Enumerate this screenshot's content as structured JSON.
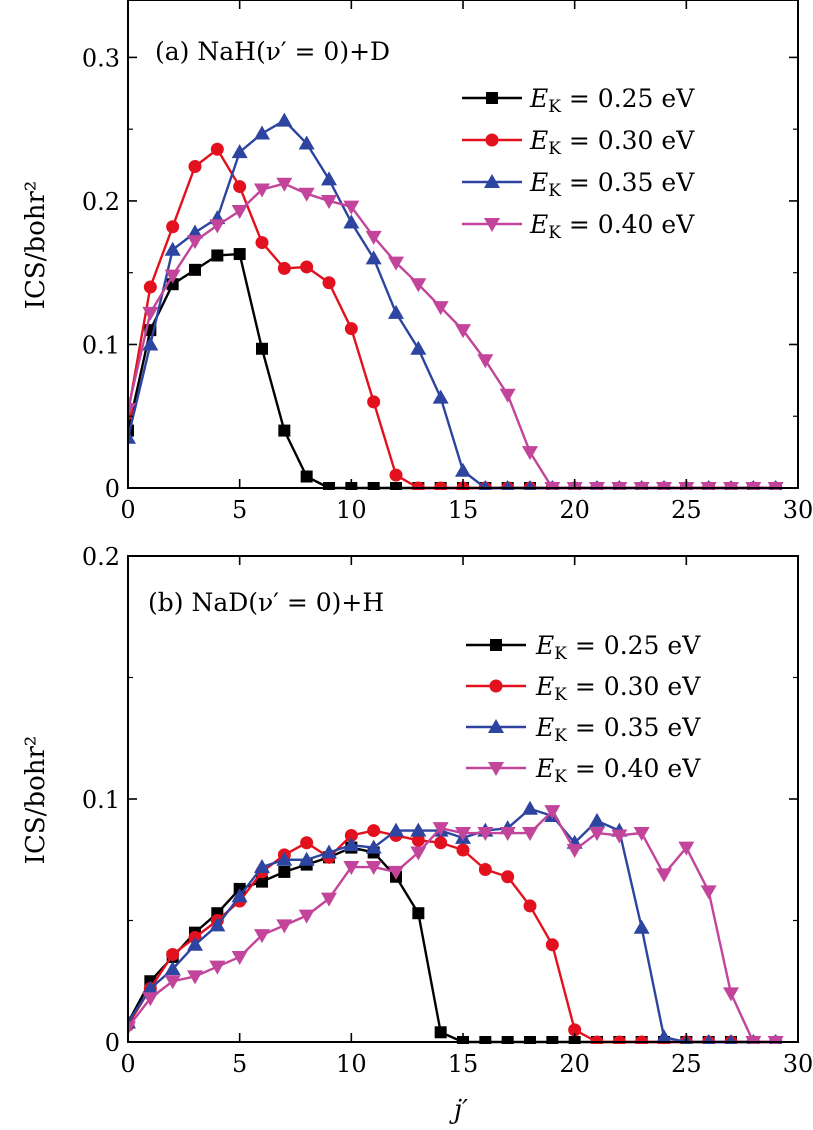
{
  "chart_data": [
    {
      "type": "line",
      "panel": "a",
      "title": "(a) NaH(ν′ = 0)+D",
      "xlabel": "",
      "ylabel": "ICS/bohr²",
      "xlim": [
        0,
        30
      ],
      "ylim": [
        0,
        0.34
      ],
      "xticks": [
        0,
        5,
        10,
        15,
        20,
        25,
        30
      ],
      "xtick_labels": [
        "0",
        "5",
        "10",
        "15",
        "20",
        "25",
        "30"
      ],
      "yticks": [
        0,
        0.1,
        0.2,
        0.3
      ],
      "ytick_labels": [
        "0",
        "0.1",
        "0.2",
        "0.3"
      ],
      "legend_position": "top-right",
      "series": [
        {
          "name": "E_K = 0.25 eV",
          "label_main": "E",
          "label_sub": "K",
          "label_rest": " = 0.25 eV",
          "color": "#000000",
          "marker": "square",
          "x": [
            0,
            1,
            2,
            3,
            4,
            5,
            6,
            7,
            8,
            9,
            10,
            11,
            12,
            13,
            14,
            15,
            16,
            17,
            18,
            19,
            20,
            21,
            22,
            23,
            24,
            25,
            26,
            27,
            28,
            29
          ],
          "values": [
            0.04,
            0.11,
            0.142,
            0.152,
            0.162,
            0.163,
            0.097,
            0.04,
            0.008,
            0,
            0,
            0,
            0,
            0,
            0,
            0,
            0,
            0,
            0,
            0,
            0,
            0,
            0,
            0,
            0,
            0,
            0,
            0,
            0,
            0
          ]
        },
        {
          "name": "E_K = 0.30 eV",
          "label_main": "E",
          "label_sub": "K",
          "label_rest": " = 0.30 eV",
          "color": "#e3101e",
          "marker": "circle",
          "x": [
            0,
            1,
            2,
            3,
            4,
            5,
            6,
            7,
            8,
            9,
            10,
            11,
            12,
            13,
            14,
            15,
            16,
            17,
            18,
            19,
            20,
            21,
            22,
            23,
            24,
            25,
            26,
            27,
            28,
            29
          ],
          "values": [
            0.052,
            0.14,
            0.182,
            0.224,
            0.236,
            0.21,
            0.171,
            0.153,
            0.154,
            0.143,
            0.111,
            0.06,
            0.009,
            0,
            0,
            0,
            0,
            0,
            0,
            0,
            0,
            0,
            0,
            0,
            0,
            0,
            0,
            0,
            0,
            0
          ]
        },
        {
          "name": "E_K = 0.35 eV",
          "label_main": "E",
          "label_sub": "K",
          "label_rest": " = 0.35 eV",
          "color": "#2d44a0",
          "marker": "triangle-up",
          "x": [
            0,
            1,
            2,
            3,
            4,
            5,
            6,
            7,
            8,
            9,
            10,
            11,
            12,
            13,
            14,
            15,
            16,
            17,
            18,
            19,
            20,
            21,
            22,
            23,
            24,
            25,
            26,
            27,
            28,
            29
          ],
          "values": [
            0.035,
            0.1,
            0.166,
            0.178,
            0.188,
            0.234,
            0.247,
            0.256,
            0.24,
            0.215,
            0.185,
            0.16,
            0.122,
            0.097,
            0.063,
            0.012,
            0,
            0,
            0,
            0,
            0,
            0,
            0,
            0,
            0,
            0,
            0,
            0,
            0,
            0
          ]
        },
        {
          "name": "E_K = 0.40 eV",
          "label_main": "E",
          "label_sub": "K",
          "label_rest": " = 0.40 eV",
          "color": "#c2449b",
          "marker": "triangle-down",
          "x": [
            0,
            1,
            2,
            3,
            4,
            5,
            6,
            7,
            8,
            9,
            10,
            11,
            12,
            13,
            14,
            15,
            16,
            17,
            18,
            19,
            20,
            21,
            22,
            23,
            24,
            25,
            26,
            27,
            28,
            29
          ],
          "values": [
            0.055,
            0.122,
            0.148,
            0.172,
            0.183,
            0.193,
            0.208,
            0.212,
            0.205,
            0.2,
            0.196,
            0.175,
            0.157,
            0.142,
            0.126,
            0.11,
            0.089,
            0.065,
            0.025,
            0,
            0,
            0,
            0,
            0,
            0,
            0,
            0,
            0,
            0,
            0
          ]
        }
      ]
    },
    {
      "type": "line",
      "panel": "b",
      "title": "(b) NaD(ν′ = 0)+H",
      "xlabel": "j′",
      "ylabel": "ICS/bohr²",
      "xlim": [
        0,
        30
      ],
      "ylim": [
        0,
        0.2
      ],
      "xticks": [
        0,
        5,
        10,
        15,
        20,
        25,
        30
      ],
      "xtick_labels": [
        "0",
        "5",
        "10",
        "15",
        "20",
        "25",
        "30"
      ],
      "yticks": [
        0,
        0.1,
        0.2
      ],
      "ytick_labels": [
        "0",
        "0.1",
        "0.2"
      ],
      "legend_position": "top-right",
      "series": [
        {
          "name": "E_K = 0.25 eV",
          "label_main": "E",
          "label_sub": "K",
          "label_rest": " = 0.25 eV",
          "color": "#000000",
          "marker": "square",
          "x": [
            0,
            1,
            2,
            3,
            4,
            5,
            6,
            7,
            8,
            9,
            10,
            11,
            12,
            13,
            14,
            15,
            16,
            17,
            18,
            19,
            20,
            21,
            22,
            23,
            24,
            25,
            26,
            27,
            28,
            29
          ],
          "values": [
            0.008,
            0.025,
            0.035,
            0.045,
            0.053,
            0.063,
            0.066,
            0.07,
            0.073,
            0.076,
            0.08,
            0.078,
            0.068,
            0.053,
            0.004,
            0,
            0,
            0,
            0,
            0,
            0,
            0,
            0,
            0,
            0,
            0,
            0,
            0,
            0,
            0
          ]
        },
        {
          "name": "E_K = 0.30 eV",
          "label_main": "E",
          "label_sub": "K",
          "label_rest": " = 0.30 eV",
          "color": "#e3101e",
          "marker": "circle",
          "x": [
            0,
            1,
            2,
            3,
            4,
            5,
            6,
            7,
            8,
            9,
            10,
            11,
            12,
            13,
            14,
            15,
            16,
            17,
            18,
            19,
            20,
            21,
            22,
            23,
            24,
            25,
            26,
            27,
            28,
            29
          ],
          "values": [
            0.007,
            0.022,
            0.036,
            0.043,
            0.05,
            0.058,
            0.07,
            0.077,
            0.082,
            0.076,
            0.085,
            0.087,
            0.085,
            0.083,
            0.082,
            0.079,
            0.071,
            0.068,
            0.056,
            0.04,
            0.005,
            0,
            0,
            0,
            0,
            0,
            0,
            0,
            0,
            0
          ]
        },
        {
          "name": "E_K = 0.35 eV",
          "label_main": "E",
          "label_sub": "K",
          "label_rest": " = 0.35 eV",
          "color": "#2d44a0",
          "marker": "triangle-up",
          "x": [
            0,
            1,
            2,
            3,
            4,
            5,
            6,
            7,
            8,
            9,
            10,
            11,
            12,
            13,
            14,
            15,
            16,
            17,
            18,
            19,
            20,
            21,
            22,
            23,
            24,
            25,
            26,
            27,
            28,
            29
          ],
          "values": [
            0.008,
            0.022,
            0.03,
            0.04,
            0.048,
            0.06,
            0.072,
            0.075,
            0.075,
            0.078,
            0.081,
            0.08,
            0.087,
            0.087,
            0.087,
            0.084,
            0.087,
            0.088,
            0.096,
            0.093,
            0.082,
            0.091,
            0.087,
            0.047,
            0.002,
            0,
            0,
            0,
            0,
            0
          ]
        },
        {
          "name": "E_K = 0.40 eV",
          "label_main": "E",
          "label_sub": "K",
          "label_rest": " = 0.40 eV",
          "color": "#c2449b",
          "marker": "triangle-down",
          "x": [
            0,
            1,
            2,
            3,
            4,
            5,
            6,
            7,
            8,
            9,
            10,
            11,
            12,
            13,
            14,
            15,
            16,
            17,
            18,
            19,
            20,
            21,
            22,
            23,
            24,
            25,
            26,
            27,
            28,
            29
          ],
          "values": [
            0.006,
            0.018,
            0.025,
            0.027,
            0.031,
            0.035,
            0.044,
            0.048,
            0.052,
            0.059,
            0.072,
            0.072,
            0.07,
            0.078,
            0.088,
            0.086,
            0.086,
            0.086,
            0.086,
            0.095,
            0.079,
            0.086,
            0.085,
            0.086,
            0.069,
            0.08,
            0.062,
            0.02,
            0,
            0
          ]
        }
      ]
    }
  ]
}
